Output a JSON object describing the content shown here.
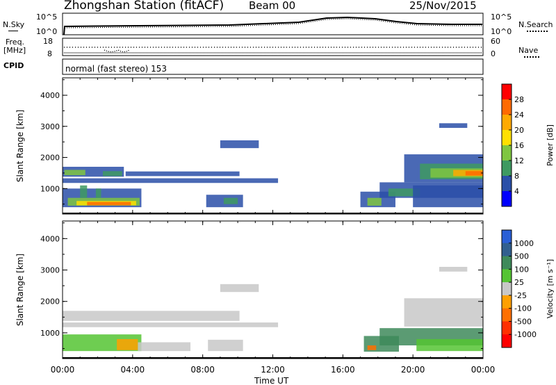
{
  "header": {
    "title": "Zhongshan Station (fitACF)",
    "beam": "Beam 00",
    "date": "25/Nov/2015"
  },
  "noise_panel": {
    "left_label": "N.Sky",
    "right_label": "N.Search",
    "left_ticks": [
      "10^5",
      "10^0"
    ],
    "right_ticks": [
      "10^5",
      "10^0"
    ]
  },
  "freq_panel": {
    "left_label_1": "Freq.",
    "left_label_2": "[MHz]",
    "right_label": "Nave",
    "left_ticks": [
      "18",
      "8"
    ],
    "right_ticks": [
      "60",
      "0"
    ]
  },
  "cpid": {
    "label": "CPID",
    "text": "normal (fast stereo) 153"
  },
  "chart_data": [
    {
      "type": "heatmap",
      "quantity": "power",
      "ylabel": "Slant Range [km]",
      "colorbar_label": "Power [dB]",
      "colorbar_ticks": [
        "28",
        "24",
        "20",
        "16",
        "12",
        "8",
        "4"
      ],
      "colorbar_colors": [
        "#ff0000",
        "#ff6a00",
        "#ffaa00",
        "#ffe000",
        "#7fc641",
        "#3e9a61",
        "#2a4fa8",
        "#0000ff"
      ],
      "x_ticks": [
        "00:00",
        "04:00",
        "08:00",
        "12:00",
        "16:00",
        "20:00",
        "00:00"
      ],
      "y_ticks": [
        "1000",
        "2000",
        "3000",
        "4000"
      ],
      "ylim": [
        180,
        4560
      ],
      "xlim": [
        0,
        24
      ],
      "xlabel": "",
      "regions": [
        {
          "t": [
            0,
            12.3
          ],
          "r": [
            1180,
            1330
          ],
          "c": "#2a4fa8"
        },
        {
          "t": [
            0,
            3.5
          ],
          "r": [
            1380,
            1700
          ],
          "c": "#2a4fa8"
        },
        {
          "t": [
            0.1,
            1.3
          ],
          "r": [
            1430,
            1600
          ],
          "c": "#7fc641"
        },
        {
          "t": [
            2.3,
            3.4
          ],
          "r": [
            1400,
            1560
          ],
          "c": "#3e9a61"
        },
        {
          "t": [
            3.6,
            10.1
          ],
          "r": [
            1400,
            1550
          ],
          "c": "#2a4fa8"
        },
        {
          "t": [
            0,
            4.5
          ],
          "r": [
            400,
            1000
          ],
          "c": "#2a4fa8"
        },
        {
          "t": [
            0.3,
            4.4
          ],
          "r": [
            450,
            700
          ],
          "c": "#7fc641"
        },
        {
          "t": [
            0.8,
            4.2
          ],
          "r": [
            460,
            600
          ],
          "c": "#ffe000"
        },
        {
          "t": [
            1.4,
            3.9
          ],
          "r": [
            460,
            570
          ],
          "c": "#ff6a00"
        },
        {
          "t": [
            1.0,
            1.4
          ],
          "r": [
            700,
            1100
          ],
          "c": "#3e9a61"
        },
        {
          "t": [
            1.9,
            2.2
          ],
          "r": [
            700,
            1000
          ],
          "c": "#3e9a61"
        },
        {
          "t": [
            8.2,
            10.3
          ],
          "r": [
            400,
            800
          ],
          "c": "#2a4fa8"
        },
        {
          "t": [
            9.2,
            10.0
          ],
          "r": [
            500,
            700
          ],
          "c": "#3e9a61"
        },
        {
          "t": [
            9.0,
            11.2
          ],
          "r": [
            2300,
            2550
          ],
          "c": "#2a4fa8"
        },
        {
          "t": [
            17.0,
            19.0
          ],
          "r": [
            400,
            900
          ],
          "c": "#2a4fa8"
        },
        {
          "t": [
            17.4,
            18.2
          ],
          "r": [
            450,
            700
          ],
          "c": "#7fc641"
        },
        {
          "t": [
            18.1,
            24
          ],
          "r": [
            700,
            1200
          ],
          "c": "#2a4fa8"
        },
        {
          "t": [
            18.6,
            20.4
          ],
          "r": [
            750,
            1000
          ],
          "c": "#3e9a61"
        },
        {
          "t": [
            20.0,
            24
          ],
          "r": [
            400,
            1100
          ],
          "c": "#2a4fa8"
        },
        {
          "t": [
            19.5,
            24
          ],
          "r": [
            1200,
            2100
          ],
          "c": "#2a4fa8"
        },
        {
          "t": [
            20.4,
            24
          ],
          "r": [
            1300,
            1800
          ],
          "c": "#3e9a61"
        },
        {
          "t": [
            21.0,
            24
          ],
          "r": [
            1350,
            1650
          ],
          "c": "#7fc641"
        },
        {
          "t": [
            22.3,
            24
          ],
          "r": [
            1400,
            1600
          ],
          "c": "#ffaa00"
        },
        {
          "t": [
            23.0,
            24
          ],
          "r": [
            1420,
            1560
          ],
          "c": "#ff6a00"
        },
        {
          "t": [
            21.5,
            23.1
          ],
          "r": [
            2950,
            3100
          ],
          "c": "#2a4fa8"
        }
      ]
    },
    {
      "type": "heatmap",
      "quantity": "velocity",
      "ylabel": "Slant Range [km]",
      "xlabel": "Time UT",
      "colorbar_label": "Velocity [m s⁻¹]",
      "colorbar_ticks": [
        "1000",
        "500",
        "100",
        "25",
        "-25",
        "-100",
        "-500",
        "-1000"
      ],
      "colorbar_colors": [
        "#2a5fd6",
        "#315f8f",
        "#3e8a5a",
        "#55c433",
        "#c8c8c8",
        "#ffa000",
        "#ff7000",
        "#ff3000",
        "#ff0000"
      ],
      "x_ticks": [
        "00:00",
        "04:00",
        "08:00",
        "12:00",
        "16:00",
        "20:00",
        "00:00"
      ],
      "y_ticks": [
        "1000",
        "2000",
        "3000",
        "4000"
      ],
      "ylim": [
        180,
        4560
      ],
      "xlim": [
        0,
        24
      ],
      "regions": [
        {
          "t": [
            0,
            12.3
          ],
          "r": [
            1180,
            1330
          ],
          "c": "#c8c8c8"
        },
        {
          "t": [
            0,
            10.1
          ],
          "r": [
            1380,
            1700
          ],
          "c": "#c8c8c8"
        },
        {
          "t": [
            0,
            4.5
          ],
          "r": [
            420,
            950
          ],
          "c": "#55c433"
        },
        {
          "t": [
            3.1,
            4.3
          ],
          "r": [
            450,
            800
          ],
          "c": "#ffa000"
        },
        {
          "t": [
            4.3,
            7.3
          ],
          "r": [
            420,
            700
          ],
          "c": "#c8c8c8"
        },
        {
          "t": [
            8.3,
            10.3
          ],
          "r": [
            420,
            780
          ],
          "c": "#c8c8c8"
        },
        {
          "t": [
            9.0,
            11.2
          ],
          "r": [
            2300,
            2550
          ],
          "c": "#c8c8c8"
        },
        {
          "t": [
            17.2,
            19.2
          ],
          "r": [
            400,
            900
          ],
          "c": "#3e8a5a"
        },
        {
          "t": [
            18.1,
            24
          ],
          "r": [
            600,
            1150
          ],
          "c": "#3e8a5a"
        },
        {
          "t": [
            20.2,
            24
          ],
          "r": [
            420,
            800
          ],
          "c": "#55c433"
        },
        {
          "t": [
            19.5,
            24
          ],
          "r": [
            1200,
            2100
          ],
          "c": "#c8c8c8"
        },
        {
          "t": [
            21.5,
            23.1
          ],
          "r": [
            2950,
            3100
          ],
          "c": "#c8c8c8"
        },
        {
          "t": [
            17.4,
            17.9
          ],
          "r": [
            450,
            600
          ],
          "c": "#ff7000"
        }
      ]
    }
  ]
}
